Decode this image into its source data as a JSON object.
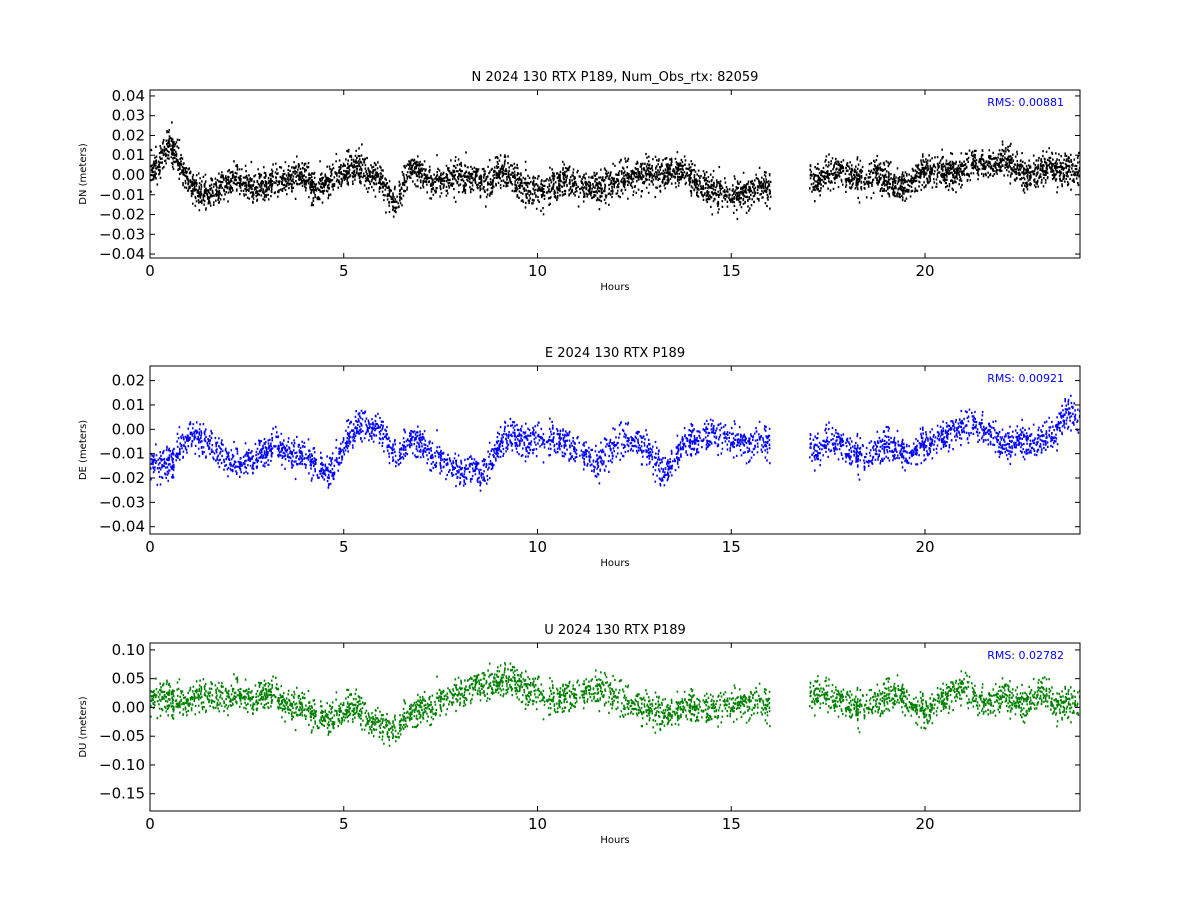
{
  "chart_data": [
    {
      "type": "scatter",
      "title": "N 2024 130 RTX  P189, Num_Obs_rtx: 82059",
      "xlabel": "Hours",
      "ylabel": "DN (meters)",
      "xlim": [
        0,
        24
      ],
      "ylim": [
        -0.042,
        0.043
      ],
      "xticks": [
        0,
        5,
        10,
        15,
        20
      ],
      "yticks": [
        -0.04,
        -0.03,
        -0.02,
        -0.01,
        0.0,
        0.01,
        0.02,
        0.03,
        0.04
      ],
      "ytick_labels": [
        "−0.04",
        "−0.03",
        "−0.02",
        "−0.01",
        "0.00",
        "0.01",
        "0.02",
        "0.03",
        "0.04"
      ],
      "grid": false,
      "color": "#000000",
      "rms_label": "RMS:  0.00881",
      "rms_color": "#0000ff",
      "series": [
        {
          "x": [
            0,
            0.25,
            0.5,
            0.75,
            1,
            1.25,
            1.5,
            1.75,
            2,
            2.25,
            2.5,
            2.75,
            3,
            3.25,
            3.5,
            3.75,
            4,
            4.25,
            4.5,
            4.75,
            5,
            5.25,
            5.5,
            5.75,
            6,
            6.25,
            6.5,
            6.75,
            7,
            7.25,
            7.5,
            7.75,
            8,
            8.25,
            8.5,
            8.75,
            9,
            9.25,
            9.5,
            9.75,
            10,
            10.25,
            10.5,
            10.75,
            11,
            11.25,
            11.5,
            11.75,
            12,
            12.25,
            12.5,
            12.75,
            13,
            13.25,
            13.5,
            13.75,
            14,
            14.25,
            14.5,
            14.75,
            15,
            15.25,
            15.5,
            15.75,
            16,
            17,
            17.25,
            17.5,
            17.75,
            18,
            18.25,
            18.5,
            18.75,
            19,
            19.25,
            19.5,
            19.75,
            20,
            20.25,
            20.5,
            20.75,
            21,
            21.25,
            21.5,
            21.75,
            22,
            22.25,
            22.5,
            22.75,
            23,
            23.25,
            23.5,
            23.75,
            24
          ],
          "y": [
            0.002,
            0.008,
            0.016,
            0.006,
            -0.004,
            -0.008,
            -0.01,
            -0.006,
            -0.003,
            -0.002,
            -0.004,
            -0.006,
            -0.004,
            -0.003,
            -0.002,
            0.001,
            -0.002,
            -0.006,
            -0.004,
            0.0,
            0.002,
            0.004,
            0.003,
            0.001,
            -0.004,
            -0.014,
            -0.006,
            0.004,
            0.0,
            -0.002,
            -0.003,
            -0.001,
            0.0,
            -0.002,
            -0.004,
            -0.003,
            0.002,
            0.001,
            -0.004,
            -0.007,
            -0.009,
            -0.006,
            -0.004,
            -0.002,
            -0.004,
            -0.005,
            -0.006,
            -0.005,
            -0.003,
            -0.001,
            0.001,
            0.002,
            0.0,
            0.001,
            0.003,
            0.002,
            -0.002,
            -0.005,
            -0.008,
            -0.01,
            -0.009,
            -0.008,
            -0.007,
            -0.005,
            -0.006,
            0.0,
            -0.002,
            0.002,
            0.003,
            0.001,
            -0.001,
            -0.002,
            0.001,
            -0.002,
            -0.006,
            -0.004,
            0.0,
            0.002,
            0.003,
            0.002,
            0.002,
            0.004,
            0.007,
            0.007,
            0.005,
            0.008,
            0.004,
            0.001,
            0.0,
            0.003,
            0.004,
            0.002,
            0.003,
            0.004
          ]
        }
      ]
    },
    {
      "type": "scatter",
      "title": "E 2024 130 RTX  P189",
      "xlabel": "Hours",
      "ylabel": "DE (meters)",
      "xlim": [
        0,
        24
      ],
      "ylim": [
        -0.043,
        0.026
      ],
      "xticks": [
        0,
        5,
        10,
        15,
        20
      ],
      "yticks": [
        -0.04,
        -0.03,
        -0.02,
        -0.01,
        0.0,
        0.01,
        0.02
      ],
      "ytick_labels": [
        "−0.04",
        "−0.03",
        "−0.02",
        "−0.01",
        "0.00",
        "0.01",
        "0.02"
      ],
      "grid": false,
      "color": "#0000ff",
      "rms_label": "RMS:  0.00921",
      "rms_color": "#0000ff",
      "series": [
        {
          "x": [
            0,
            0.25,
            0.5,
            0.75,
            1,
            1.25,
            1.5,
            1.75,
            2,
            2.25,
            2.5,
            2.75,
            3,
            3.25,
            3.5,
            3.75,
            4,
            4.25,
            4.5,
            4.75,
            5,
            5.25,
            5.5,
            5.75,
            6,
            6.25,
            6.5,
            6.75,
            7,
            7.25,
            7.5,
            7.75,
            8,
            8.25,
            8.5,
            8.75,
            9,
            9.25,
            9.5,
            9.75,
            10,
            10.25,
            10.5,
            10.75,
            11,
            11.25,
            11.5,
            11.75,
            12,
            12.25,
            12.5,
            12.75,
            13,
            13.25,
            13.5,
            13.75,
            14,
            14.25,
            14.5,
            14.75,
            15,
            15.25,
            15.5,
            15.75,
            16,
            17,
            17.25,
            17.5,
            17.75,
            18,
            18.25,
            18.5,
            18.75,
            19,
            19.25,
            19.5,
            19.75,
            20,
            20.25,
            20.5,
            20.75,
            21,
            21.25,
            21.5,
            21.75,
            22,
            22.25,
            22.5,
            22.75,
            23,
            23.25,
            23.5,
            23.75,
            24
          ],
          "y": [
            -0.012,
            -0.015,
            -0.014,
            -0.008,
            -0.002,
            -0.003,
            -0.006,
            -0.009,
            -0.011,
            -0.014,
            -0.012,
            -0.01,
            -0.008,
            -0.006,
            -0.008,
            -0.01,
            -0.011,
            -0.013,
            -0.018,
            -0.014,
            -0.006,
            0.0,
            0.003,
            0.002,
            -0.002,
            -0.01,
            -0.008,
            -0.004,
            -0.006,
            -0.009,
            -0.012,
            -0.015,
            -0.018,
            -0.016,
            -0.02,
            -0.014,
            -0.006,
            -0.002,
            -0.004,
            -0.005,
            -0.004,
            -0.003,
            -0.004,
            -0.006,
            -0.008,
            -0.01,
            -0.014,
            -0.01,
            -0.006,
            -0.004,
            -0.005,
            -0.007,
            -0.012,
            -0.018,
            -0.012,
            -0.006,
            -0.004,
            -0.003,
            -0.002,
            -0.003,
            -0.003,
            -0.004,
            -0.005,
            -0.004,
            -0.005,
            -0.006,
            -0.008,
            -0.004,
            -0.005,
            -0.008,
            -0.01,
            -0.012,
            -0.008,
            -0.006,
            -0.008,
            -0.01,
            -0.008,
            -0.006,
            -0.004,
            -0.002,
            0.0,
            0.002,
            0.003,
            0.001,
            -0.002,
            -0.008,
            -0.006,
            -0.004,
            -0.006,
            -0.004,
            -0.003,
            0.004,
            0.008,
            0.005
          ]
        }
      ]
    },
    {
      "type": "scatter",
      "title": "U 2024 130 RTX  P189",
      "xlabel": "Hours",
      "ylabel": "DU (meters)",
      "xlim": [
        0,
        24
      ],
      "ylim": [
        -0.18,
        0.112
      ],
      "xticks": [
        0,
        5,
        10,
        15,
        20
      ],
      "yticks": [
        -0.15,
        -0.1,
        -0.05,
        0.0,
        0.05,
        0.1
      ],
      "ytick_labels": [
        "−0.15",
        "−0.10",
        "−0.05",
        "0.00",
        "0.05",
        "0.10"
      ],
      "grid": false,
      "color": "#008000",
      "rms_label": "RMS:  0.02782",
      "rms_color": "#0000ff",
      "series": [
        {
          "x": [
            0,
            0.25,
            0.5,
            0.75,
            1,
            1.25,
            1.5,
            1.75,
            2,
            2.25,
            2.5,
            2.75,
            3,
            3.25,
            3.5,
            3.75,
            4,
            4.25,
            4.5,
            4.75,
            5,
            5.25,
            5.5,
            5.75,
            6,
            6.25,
            6.5,
            6.75,
            7,
            7.25,
            7.5,
            7.75,
            8,
            8.25,
            8.5,
            8.75,
            9,
            9.25,
            9.5,
            9.75,
            10,
            10.25,
            10.5,
            10.75,
            11,
            11.25,
            11.5,
            11.75,
            12,
            12.25,
            12.5,
            12.75,
            13,
            13.25,
            13.5,
            13.75,
            14,
            14.25,
            14.5,
            14.75,
            15,
            15.25,
            15.5,
            15.75,
            16,
            17,
            17.25,
            17.5,
            17.75,
            18,
            18.25,
            18.5,
            18.75,
            19,
            19.25,
            19.5,
            19.75,
            20,
            20.25,
            20.5,
            20.75,
            21,
            21.25,
            21.5,
            21.75,
            22,
            22.25,
            22.5,
            22.75,
            23,
            23.25,
            23.5,
            23.75,
            24
          ],
          "y": [
            0.02,
            0.018,
            0.015,
            0.01,
            0.012,
            0.025,
            0.018,
            0.02,
            0.022,
            0.028,
            0.018,
            0.02,
            0.03,
            0.02,
            0.01,
            0.005,
            0.0,
            -0.01,
            -0.02,
            -0.01,
            -0.005,
            0.005,
            -0.01,
            -0.02,
            -0.035,
            -0.04,
            -0.02,
            -0.01,
            0.0,
            0.005,
            0.015,
            0.02,
            0.025,
            0.03,
            0.035,
            0.04,
            0.045,
            0.05,
            0.04,
            0.03,
            0.025,
            0.02,
            0.015,
            0.02,
            0.025,
            0.03,
            0.035,
            0.03,
            0.02,
            0.01,
            0.005,
            0.0,
            -0.005,
            -0.01,
            -0.005,
            0.0,
            0.005,
            0.0,
            -0.005,
            0.005,
            0.01,
            0.012,
            0.015,
            0.01,
            0.005,
            0.025,
            0.03,
            0.02,
            0.015,
            0.01,
            0.0,
            0.005,
            0.01,
            0.02,
            0.025,
            0.015,
            0.0,
            -0.01,
            0.01,
            0.02,
            0.03,
            0.04,
            0.02,
            0.015,
            0.01,
            0.02,
            0.01,
            0.005,
            0.015,
            0.03,
            0.01,
            0.005,
            0.01,
            0.02
          ]
        }
      ]
    }
  ]
}
